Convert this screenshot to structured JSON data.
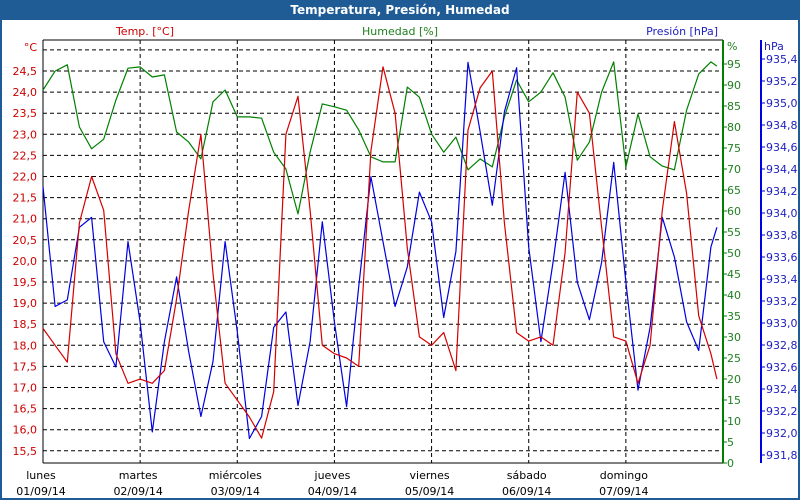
{
  "window": {
    "title": "Temperatura, Presión, Humedad"
  },
  "chart_data": {
    "type": "line",
    "title": "Temperatura, Presión, Humedad",
    "grid": true,
    "colors": {
      "temp": "#d40000",
      "humidity": "#008000",
      "pressure": "#0000e0"
    },
    "axes": {
      "left": {
        "label": "Temp. [°C]",
        "unit": "°C",
        "range": [
          15.5,
          25.0
        ],
        "ticks": [
          "15,5",
          "16,0",
          "16,5",
          "17,0",
          "17,5",
          "18,0",
          "18,5",
          "19,0",
          "19,5",
          "20,0",
          "20,5",
          "21,0",
          "21,5",
          "22,0",
          "22,5",
          "23,0",
          "23,5",
          "24,0",
          "24,5"
        ]
      },
      "right1": {
        "label": "Humedad [%]",
        "unit": "%",
        "range": [
          0,
          95
        ],
        "ticks": [
          "0",
          "5",
          "10",
          "15",
          "20",
          "25",
          "30",
          "35",
          "40",
          "45",
          "50",
          "55",
          "60",
          "65",
          "70",
          "75",
          "80",
          "85",
          "90",
          "95"
        ]
      },
      "right2": {
        "label": "Presión [hPa]",
        "unit": "hPa",
        "range": [
          931.8,
          935.4
        ],
        "ticks": [
          "931,80",
          "932,00",
          "932,20",
          "932,40",
          "932,60",
          "932,80",
          "933,00",
          "933,20",
          "933,40",
          "933,60",
          "933,80",
          "934,00",
          "934,20",
          "934,40",
          "934,60",
          "934,80",
          "935,00",
          "935,20",
          "935,40"
        ]
      },
      "x": {
        "ticks": [
          {
            "day": "lunes",
            "date": "01/09/14"
          },
          {
            "day": "martes",
            "date": "02/09/14"
          },
          {
            "day": "miércoles",
            "date": "03/09/14"
          },
          {
            "day": "jueves",
            "date": "04/09/14"
          },
          {
            "day": "viernes",
            "date": "05/09/14"
          },
          {
            "day": "sábado",
            "date": "06/09/14"
          },
          {
            "day": "domingo",
            "date": "07/09/14"
          }
        ]
      }
    },
    "x": [
      "01/09/14 00:00",
      "01/09/14 03:00",
      "01/09/14 06:00",
      "01/09/14 09:00",
      "01/09/14 12:00",
      "01/09/14 15:00",
      "01/09/14 18:00",
      "01/09/14 21:00",
      "02/09/14 00:00",
      "02/09/14 03:00",
      "02/09/14 06:00",
      "02/09/14 09:00",
      "02/09/14 12:00",
      "02/09/14 15:00",
      "02/09/14 18:00",
      "02/09/14 21:00",
      "03/09/14 00:00",
      "03/09/14 03:00",
      "03/09/14 06:00",
      "03/09/14 09:00",
      "03/09/14 12:00",
      "03/09/14 15:00",
      "03/09/14 18:00",
      "03/09/14 21:00",
      "04/09/14 00:00",
      "04/09/14 03:00",
      "04/09/14 06:00",
      "04/09/14 09:00",
      "04/09/14 12:00",
      "04/09/14 15:00",
      "04/09/14 18:00",
      "04/09/14 21:00",
      "05/09/14 00:00",
      "05/09/14 03:00",
      "05/09/14 06:00",
      "05/09/14 09:00",
      "05/09/14 12:00",
      "05/09/14 15:00",
      "05/09/14 18:00",
      "05/09/14 21:00",
      "06/09/14 00:00",
      "06/09/14 03:00",
      "06/09/14 06:00",
      "06/09/14 09:00",
      "06/09/14 12:00",
      "06/09/14 15:00",
      "06/09/14 18:00",
      "06/09/14 21:00",
      "07/09/14 00:00",
      "07/09/14 03:00",
      "07/09/14 06:00",
      "07/09/14 09:00",
      "07/09/14 12:00",
      "07/09/14 15:00",
      "07/09/14 18:00",
      "07/09/14 21:00",
      "07/09/14 22:30"
    ],
    "series": [
      {
        "name": "Temp. [°C]",
        "axis": "left",
        "values": [
          18.4,
          18.0,
          17.6,
          20.9,
          22.0,
          21.2,
          17.8,
          17.1,
          17.2,
          17.1,
          17.4,
          19.1,
          21.2,
          23.0,
          19.7,
          17.1,
          16.7,
          16.3,
          15.8,
          16.9,
          23.0,
          23.9,
          21.2,
          18.0,
          17.8,
          17.7,
          17.5,
          22.6,
          24.6,
          23.5,
          20.3,
          18.2,
          18.0,
          18.3,
          17.4,
          23.1,
          24.1,
          24.5,
          20.9,
          18.3,
          18.1,
          18.2,
          18.0,
          20.2,
          24.0,
          23.5,
          20.8,
          18.2,
          18.1,
          17.1,
          18.0,
          21.2,
          23.3,
          21.6,
          18.7,
          17.8,
          17.2
        ]
      },
      {
        "name": "Humedad [%]",
        "axis": "right1",
        "values": [
          88.8,
          93.3,
          94.8,
          80.0,
          74.8,
          77.1,
          86.4,
          94.0,
          94.3,
          91.9,
          92.4,
          78.8,
          76.4,
          72.4,
          86.0,
          88.8,
          82.4,
          82.4,
          82.1,
          74.0,
          70.0,
          59.3,
          74.0,
          85.5,
          84.8,
          84.0,
          79.3,
          72.9,
          71.7,
          71.7,
          89.5,
          87.1,
          78.3,
          74.0,
          77.6,
          69.8,
          72.4,
          70.5,
          82.4,
          91.2,
          86.0,
          88.3,
          92.9,
          87.1,
          72.1,
          76.4,
          88.3,
          95.5,
          70.5,
          83.1,
          72.9,
          70.7,
          69.8,
          84.0,
          92.6,
          95.5,
          94.5
        ]
      },
      {
        "name": "Presión [hPa]",
        "axis": "right2",
        "values": [
          934.24,
          933.15,
          933.21,
          933.87,
          933.96,
          932.83,
          932.6,
          933.74,
          933.01,
          932.01,
          932.83,
          933.42,
          932.74,
          932.15,
          932.65,
          933.74,
          932.92,
          931.95,
          932.15,
          932.96,
          933.1,
          932.25,
          932.83,
          933.92,
          933.01,
          932.24,
          933.33,
          934.33,
          933.74,
          933.15,
          933.51,
          934.19,
          933.92,
          933.05,
          933.65,
          935.37,
          934.74,
          934.07,
          934.92,
          935.32,
          933.69,
          932.83,
          933.55,
          934.37,
          933.37,
          933.03,
          933.55,
          934.46,
          933.37,
          932.39,
          932.96,
          933.96,
          933.6,
          933.01,
          932.75,
          933.69,
          933.87
        ]
      }
    ]
  }
}
